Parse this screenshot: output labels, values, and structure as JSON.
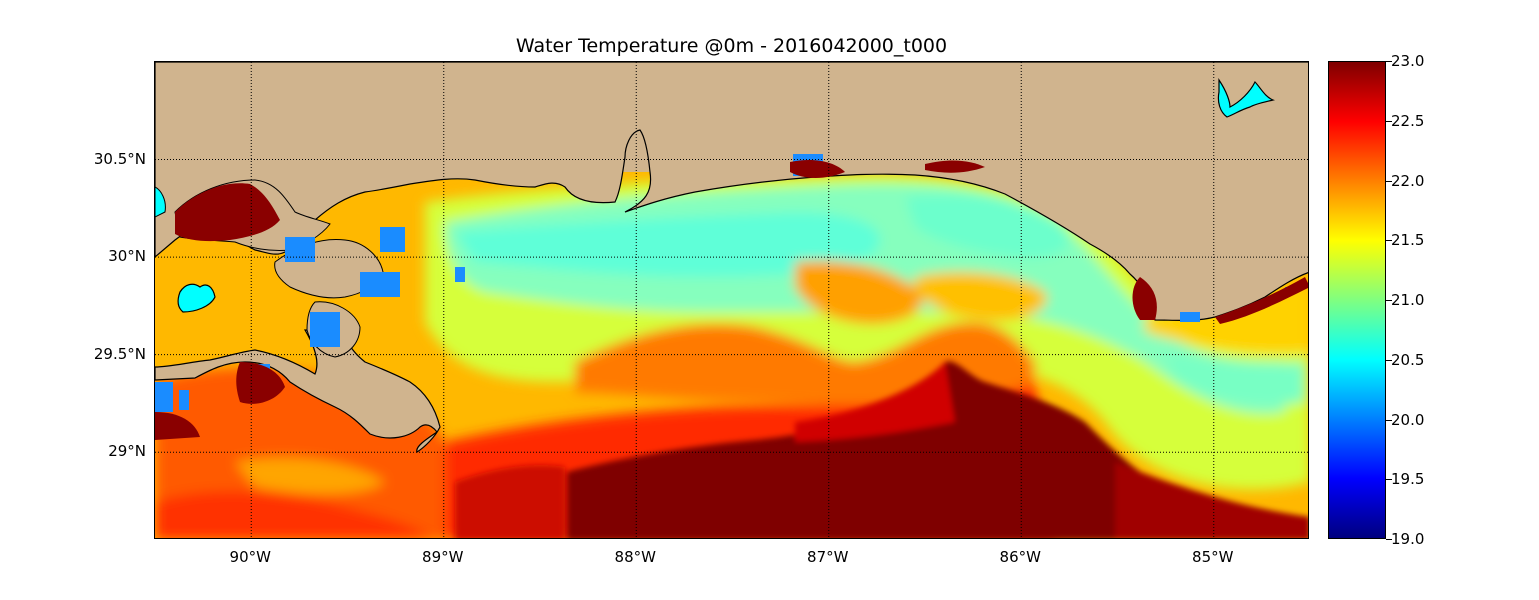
{
  "title": "Water Temperature @0m - 2016042000_t000",
  "map": {
    "type": "heatmap",
    "variable": "Water Temperature",
    "depth": "0m",
    "run": "2016042000_t000",
    "lon_range": [
      -90.5,
      -84.5
    ],
    "lat_range": [
      28.55,
      31.0
    ],
    "grid": true,
    "land_color": "#d0b48e",
    "inland_water_color": "#00ffff",
    "lon_labels": [
      "90°W",
      "89°W",
      "88°W",
      "87°W",
      "86°W",
      "85°W"
    ],
    "lat_labels": [
      "30.5°N",
      "30°N",
      "29.5°N",
      "29°N"
    ],
    "lon_ticks": [
      -90,
      -89,
      -88,
      -87,
      -86,
      -85
    ],
    "lat_ticks": [
      30.5,
      30.0,
      29.5,
      29.0
    ]
  },
  "colorbar": {
    "min": 19.0,
    "max": 23.0,
    "labels": [
      "23.0",
      "22.5",
      "22.0",
      "21.5",
      "21.0",
      "20.5",
      "20.0",
      "19.5",
      "19.0"
    ],
    "values": [
      23.0,
      22.5,
      22.0,
      21.5,
      21.0,
      20.5,
      20.0,
      19.5,
      19.0
    ],
    "colormap": "jet",
    "colors": [
      "#00007f",
      "#0000ff",
      "#0080ff",
      "#00ffff",
      "#80ff80",
      "#ffff00",
      "#ff8000",
      "#ff0000",
      "#7f0000"
    ]
  }
}
